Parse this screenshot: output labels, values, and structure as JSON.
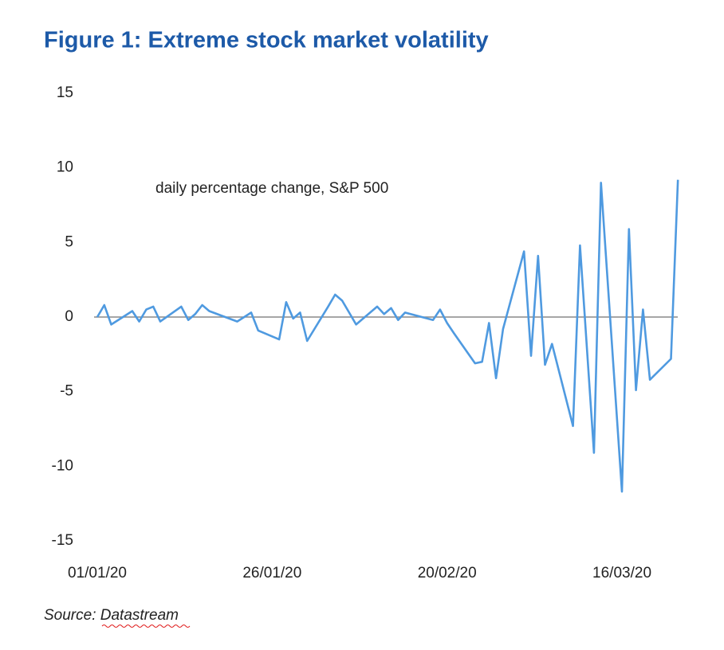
{
  "chart_data": {
    "type": "line",
    "title": "Figure 1: Extreme stock market volatility",
    "annotation": "daily percentage change, S&P 500",
    "source": "Source: Datastream",
    "x": [
      "2020-01-01",
      "2020-01-02",
      "2020-01-03",
      "2020-01-06",
      "2020-01-07",
      "2020-01-08",
      "2020-01-09",
      "2020-01-10",
      "2020-01-13",
      "2020-01-14",
      "2020-01-15",
      "2020-01-16",
      "2020-01-17",
      "2020-01-21",
      "2020-01-22",
      "2020-01-23",
      "2020-01-24",
      "2020-01-27",
      "2020-01-28",
      "2020-01-29",
      "2020-01-30",
      "2020-01-31",
      "2020-02-03",
      "2020-02-04",
      "2020-02-05",
      "2020-02-06",
      "2020-02-07",
      "2020-02-10",
      "2020-02-11",
      "2020-02-12",
      "2020-02-13",
      "2020-02-14",
      "2020-02-18",
      "2020-02-19",
      "2020-02-20",
      "2020-02-21",
      "2020-02-24",
      "2020-02-25",
      "2020-02-26",
      "2020-02-27",
      "2020-02-28",
      "2020-03-02",
      "2020-03-03",
      "2020-03-04",
      "2020-03-05",
      "2020-03-06",
      "2020-03-09",
      "2020-03-10",
      "2020-03-12",
      "2020-03-13",
      "2020-03-16",
      "2020-03-17",
      "2020-03-18",
      "2020-03-19",
      "2020-03-20",
      "2020-03-23",
      "2020-03-24"
    ],
    "series": [
      {
        "name": "daily percentage change, S&P 500",
        "color": "#4f9ae0",
        "values": [
          0,
          0.8,
          -0.5,
          0.4,
          -0.3,
          0.5,
          0.7,
          -0.3,
          0.7,
          -0.2,
          0.2,
          0.8,
          0.4,
          -0.3,
          0.0,
          0.3,
          -0.9,
          -1.5,
          1.0,
          -0.1,
          0.3,
          -1.6,
          0.7,
          1.5,
          1.1,
          0.3,
          -0.5,
          0.7,
          0.2,
          0.6,
          -0.2,
          0.3,
          -0.2,
          0.5,
          -0.4,
          -1.1,
          -3.1,
          -3.0,
          -0.4,
          -4.1,
          -0.8,
          4.4,
          -2.6,
          4.1,
          -3.2,
          -1.8,
          -7.3,
          4.8,
          -9.1,
          9.0,
          -11.7,
          5.9,
          -4.9,
          0.5,
          -4.2,
          -2.8,
          9.2
        ]
      }
    ],
    "xlim": [
      "2020-01-01",
      "2020-03-25"
    ],
    "xticks": [
      {
        "value": "2020-01-01",
        "label": "01/01/20"
      },
      {
        "value": "2020-01-26",
        "label": "26/01/20"
      },
      {
        "value": "2020-02-20",
        "label": "20/02/20"
      },
      {
        "value": "2020-03-16",
        "label": "16/03/20"
      }
    ],
    "ylim": [
      -15,
      15
    ],
    "yticks": [
      -15,
      -10,
      -5,
      0,
      5,
      10,
      15
    ],
    "grid": false
  }
}
